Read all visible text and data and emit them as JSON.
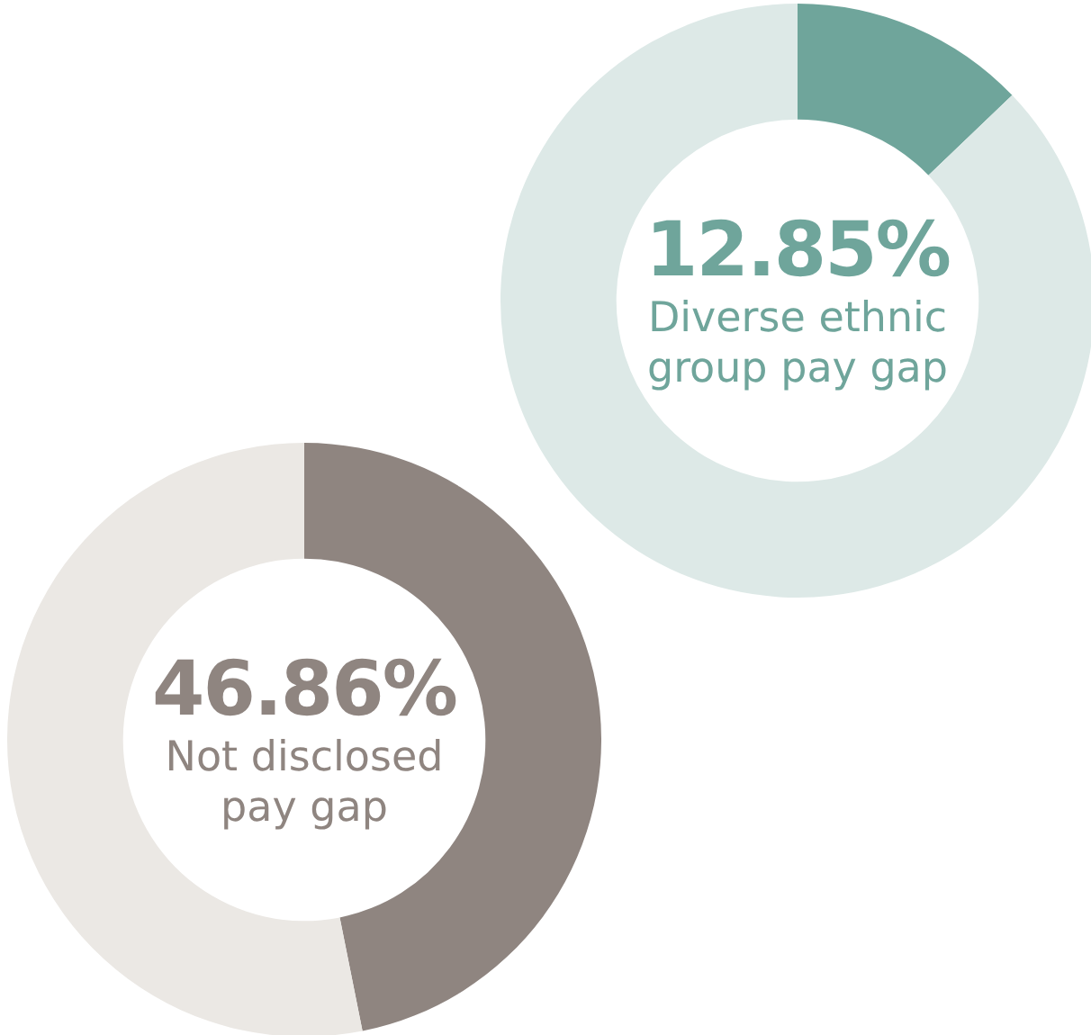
{
  "chart_data": [
    {
      "type": "donut",
      "categories": [
        "Diverse ethnic group pay gap",
        null
      ],
      "values": [
        12.85,
        87.15
      ],
      "colors": [
        "#6fa59b",
        "#dde9e7"
      ],
      "value_labels": [
        "12.85%",
        null
      ],
      "legend": false
    },
    {
      "type": "donut",
      "categories": [
        "Not disclosed pay gap",
        null
      ],
      "values": [
        46.86,
        53.14
      ],
      "colors": [
        "#8f8580",
        "#ebe8e4"
      ],
      "value_labels": [
        "46.86%",
        null
      ],
      "legend": false
    }
  ]
}
